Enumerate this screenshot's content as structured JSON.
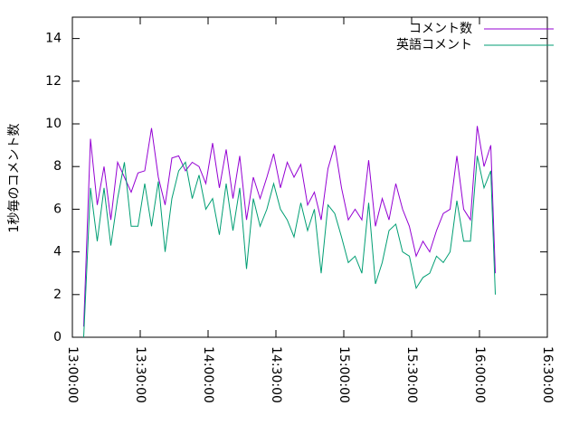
{
  "chart_data": {
    "type": "line",
    "ylabel": "1秒毎のコメント数",
    "x": [
      47100,
      47280,
      47460,
      47640,
      47820,
      48000,
      48180,
      48360,
      48540,
      48720,
      48900,
      49080,
      49260,
      49440,
      49620,
      49800,
      49980,
      50160,
      50340,
      50520,
      50700,
      50880,
      51060,
      51240,
      51420,
      51600,
      51780,
      51960,
      52140,
      52320,
      52500,
      52680,
      52860,
      53040,
      53220,
      53400,
      53580,
      53760,
      53940,
      54120,
      54300,
      54480,
      54660,
      54840,
      55020,
      55200,
      55380,
      55560,
      55740,
      55920,
      56100,
      56280,
      56460,
      56640,
      56820,
      57000,
      57180,
      57360,
      57540,
      57720,
      57900,
      58020
    ],
    "series": [
      {
        "name": "コメント数",
        "color": "#9400d3",
        "values": [
          0.5,
          9.3,
          6.2,
          8.0,
          5.5,
          8.2,
          7.5,
          6.8,
          7.7,
          7.8,
          9.8,
          7.5,
          6.2,
          8.4,
          8.5,
          7.8,
          8.2,
          8.0,
          7.2,
          9.1,
          7.0,
          8.8,
          6.5,
          8.5,
          5.5,
          7.5,
          6.5,
          7.5,
          8.6,
          7.0,
          8.2,
          7.5,
          8.1,
          6.2,
          6.8,
          5.5,
          7.9,
          9.0,
          7.0,
          5.5,
          6.0,
          5.5,
          8.3,
          5.2,
          6.5,
          5.5,
          7.2,
          6.0,
          5.2,
          3.8,
          4.5,
          4.0,
          5.0,
          5.8,
          6.0,
          8.5,
          6.0,
          5.5,
          9.9,
          8.0,
          9.0,
          3.0
        ]
      },
      {
        "name": "英語コメント",
        "color": "#009e73",
        "values": [
          0,
          7.0,
          4.5,
          7.0,
          4.3,
          6.5,
          8.2,
          5.2,
          5.2,
          7.2,
          5.2,
          7.3,
          4.0,
          6.5,
          7.8,
          8.2,
          6.5,
          7.6,
          6.0,
          6.5,
          4.8,
          7.2,
          5.0,
          7.0,
          3.2,
          6.5,
          5.2,
          6.0,
          7.2,
          6.0,
          5.5,
          4.7,
          6.3,
          5.0,
          6.0,
          3.0,
          6.2,
          5.8,
          4.7,
          3.5,
          3.8,
          3.0,
          6.3,
          2.5,
          3.5,
          5.0,
          5.3,
          4.0,
          3.8,
          2.3,
          2.8,
          3.0,
          3.8,
          3.5,
          4.0,
          6.4,
          4.5,
          4.5,
          8.5,
          7.0,
          7.8,
          2.0
        ]
      }
    ],
    "xlim": [
      46800,
      59400
    ],
    "xticks": [
      {
        "value": 46800,
        "label": "13:00:00"
      },
      {
        "value": 48600,
        "label": "13:30:00"
      },
      {
        "value": 50400,
        "label": "14:00:00"
      },
      {
        "value": 52200,
        "label": "14:30:00"
      },
      {
        "value": 54000,
        "label": "15:00:00"
      },
      {
        "value": 55800,
        "label": "15:30:00"
      },
      {
        "value": 57600,
        "label": "16:00:00"
      },
      {
        "value": 59400,
        "label": "16:30:00"
      }
    ],
    "ylim": [
      0,
      15
    ],
    "yticks": [
      0,
      2,
      4,
      6,
      8,
      10,
      12,
      14
    ],
    "grid": false,
    "legend": "top-right"
  }
}
